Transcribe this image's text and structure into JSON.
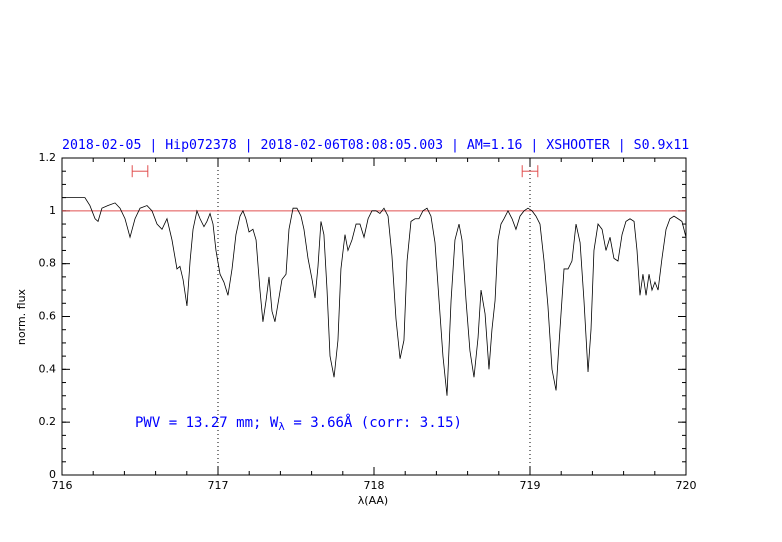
{
  "chart_data": {
    "type": "line",
    "title": "2018-02-05 | Hip072378 | 2018-02-06T08:08:05.003 | AM=1.16 | XSHOOTER | S0.9x11",
    "xlabel": "λ(AA)",
    "ylabel": "norm. flux",
    "annotation": [
      "PWV = 13.27 mm; W",
      "λ",
      " = 3.66Å (corr: 3.15)"
    ],
    "annotation_color": "#0000ff",
    "title_color": "#0000ff",
    "color": "#000000",
    "xlim": [
      716,
      720
    ],
    "ylim": [
      0,
      1.2
    ],
    "xticks": [
      716,
      717,
      718,
      719,
      720
    ],
    "yticks": [
      0,
      0.2,
      0.4,
      0.6,
      0.8,
      1,
      1.2
    ],
    "x_minor_step": 0.2,
    "y_minor_step": 0.05,
    "hlines": [
      {
        "value": 1,
        "color": "#e05050"
      }
    ],
    "vlines": [
      {
        "value": 717,
        "style": "dotted"
      },
      {
        "value": 719,
        "style": "dotted"
      }
    ],
    "continuum_windows": [
      {
        "x": [
          716.45,
          716.55
        ],
        "y": 1.15
      },
      {
        "x": [
          718.95,
          719.05
        ],
        "y": 1.15
      }
    ],
    "window_color": "#e05050",
    "x": [
      716.0,
      716.083,
      716.147,
      716.179,
      716.212,
      716.231,
      716.256,
      716.295,
      716.34,
      716.372,
      716.404,
      716.436,
      716.468,
      716.5,
      716.545,
      716.577,
      716.609,
      716.641,
      716.673,
      716.705,
      716.737,
      716.756,
      716.776,
      716.801,
      716.821,
      716.84,
      716.865,
      716.885,
      716.91,
      716.929,
      716.949,
      716.968,
      716.987,
      717.013,
      717.038,
      717.064,
      717.09,
      717.115,
      717.141,
      717.16,
      717.179,
      717.199,
      717.224,
      717.244,
      717.269,
      717.288,
      717.308,
      717.327,
      717.346,
      717.365,
      717.385,
      717.41,
      717.436,
      717.455,
      717.481,
      717.506,
      717.532,
      717.551,
      717.577,
      717.603,
      717.622,
      717.641,
      717.66,
      717.679,
      717.699,
      717.718,
      717.744,
      717.769,
      717.788,
      717.814,
      717.833,
      717.859,
      717.885,
      717.91,
      717.936,
      717.962,
      717.987,
      718.013,
      718.038,
      718.064,
      718.09,
      718.115,
      718.141,
      718.167,
      718.192,
      718.212,
      718.237,
      718.263,
      718.288,
      718.314,
      718.34,
      718.365,
      718.391,
      718.417,
      718.442,
      718.468,
      718.494,
      718.519,
      718.545,
      718.564,
      718.59,
      718.615,
      718.641,
      718.667,
      718.686,
      718.712,
      718.737,
      718.756,
      718.776,
      718.795,
      718.814,
      718.833,
      718.859,
      718.885,
      718.91,
      718.936,
      718.962,
      718.987,
      719.013,
      719.038,
      719.064,
      719.09,
      719.115,
      719.141,
      719.167,
      719.192,
      719.218,
      719.244,
      719.269,
      719.295,
      719.321,
      719.346,
      719.372,
      719.391,
      719.41,
      719.436,
      719.462,
      719.487,
      719.513,
      719.538,
      719.564,
      719.59,
      719.615,
      719.641,
      719.667,
      719.686,
      719.705,
      719.724,
      719.744,
      719.763,
      719.782,
      719.801,
      719.821,
      719.846,
      719.872,
      719.897,
      719.923,
      719.949,
      719.974,
      720.0
    ],
    "values": [
      1.05,
      1.05,
      1.05,
      1.02,
      0.97,
      0.96,
      1.01,
      1.02,
      1.03,
      1.01,
      0.97,
      0.9,
      0.97,
      1.01,
      1.02,
      1.0,
      0.95,
      0.93,
      0.97,
      0.89,
      0.78,
      0.79,
      0.74,
      0.64,
      0.81,
      0.93,
      1.0,
      0.97,
      0.94,
      0.96,
      0.99,
      0.95,
      0.85,
      0.76,
      0.73,
      0.68,
      0.78,
      0.91,
      0.98,
      1.0,
      0.97,
      0.92,
      0.93,
      0.89,
      0.7,
      0.58,
      0.66,
      0.75,
      0.62,
      0.58,
      0.65,
      0.74,
      0.76,
      0.93,
      1.01,
      1.01,
      0.98,
      0.93,
      0.82,
      0.74,
      0.67,
      0.79,
      0.96,
      0.91,
      0.7,
      0.45,
      0.37,
      0.51,
      0.78,
      0.91,
      0.85,
      0.89,
      0.95,
      0.95,
      0.9,
      0.97,
      1.0,
      1.0,
      0.99,
      1.01,
      0.98,
      0.83,
      0.59,
      0.44,
      0.51,
      0.81,
      0.96,
      0.97,
      0.97,
      1.0,
      1.01,
      0.98,
      0.88,
      0.66,
      0.45,
      0.3,
      0.66,
      0.89,
      0.95,
      0.89,
      0.66,
      0.47,
      0.37,
      0.52,
      0.7,
      0.61,
      0.4,
      0.55,
      0.66,
      0.89,
      0.95,
      0.97,
      1.0,
      0.97,
      0.93,
      0.98,
      1.0,
      1.01,
      1.0,
      0.98,
      0.95,
      0.81,
      0.64,
      0.4,
      0.32,
      0.55,
      0.78,
      0.78,
      0.81,
      0.95,
      0.88,
      0.66,
      0.39,
      0.55,
      0.85,
      0.95,
      0.93,
      0.85,
      0.9,
      0.82,
      0.81,
      0.91,
      0.96,
      0.97,
      0.96,
      0.85,
      0.68,
      0.76,
      0.68,
      0.76,
      0.7,
      0.73,
      0.7,
      0.82,
      0.93,
      0.97,
      0.98,
      0.97,
      0.96,
      0.9
    ]
  }
}
